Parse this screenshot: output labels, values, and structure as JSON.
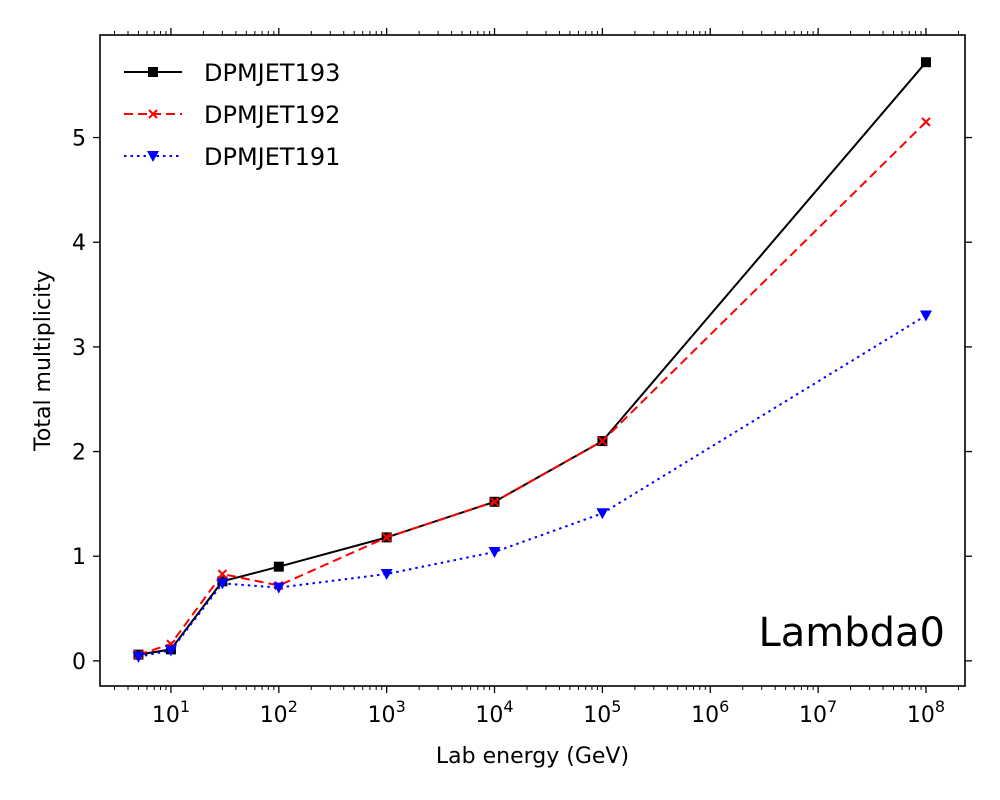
{
  "chart_data": {
    "type": "line",
    "xlabel": "Lab energy (GeV)",
    "ylabel": "Total multiplicity",
    "xscale": "log",
    "xlim": [
      2.2,
      230000000.0
    ],
    "ylim": [
      -0.24,
      5.98
    ],
    "x_ticks": [
      {
        "value": 10,
        "label": "10^1"
      },
      {
        "value": 100,
        "label": "10^2"
      },
      {
        "value": 1000,
        "label": "10^3"
      },
      {
        "value": 10000,
        "label": "10^4"
      },
      {
        "value": 100000,
        "label": "10^5"
      },
      {
        "value": 1000000,
        "label": "10^6"
      },
      {
        "value": 10000000,
        "label": "10^7"
      },
      {
        "value": 100000000,
        "label": "10^8"
      }
    ],
    "y_ticks": [
      0,
      1,
      2,
      3,
      4,
      5
    ],
    "grid": false,
    "legend_position": "top-left",
    "annotation": "Lambda0",
    "x": [
      5,
      10,
      30,
      100,
      1000,
      10000,
      100000,
      100000000
    ],
    "series": [
      {
        "name": "DPMJET193",
        "color": "#000000",
        "line_style": "solid",
        "marker": "square",
        "values": [
          0.06,
          0.11,
          0.76,
          0.9,
          1.18,
          1.52,
          2.1,
          5.72
        ]
      },
      {
        "name": "DPMJET192",
        "color": "#ff0000",
        "line_style": "dashed",
        "marker": "x",
        "values": [
          0.06,
          0.16,
          0.83,
          0.72,
          1.18,
          1.52,
          2.1,
          5.15
        ]
      },
      {
        "name": "DPMJET191",
        "color": "#0000ff",
        "line_style": "dotted",
        "marker": "triangle-down",
        "values": [
          0.04,
          0.1,
          0.74,
          0.7,
          0.83,
          1.04,
          1.41,
          3.3
        ]
      }
    ]
  }
}
